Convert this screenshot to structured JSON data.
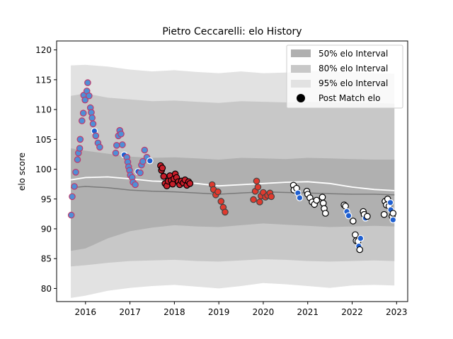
{
  "chart_data": {
    "type": "scatter",
    "title": "Pietro Ceccarelli: elo History",
    "xlabel": "",
    "ylabel": "elo score",
    "xlim": [
      2015.35,
      2023.25
    ],
    "ylim": [
      77.8,
      121.5
    ],
    "x_ticks": [
      2016,
      2017,
      2018,
      2019,
      2020,
      2021,
      2022,
      2023
    ],
    "y_ticks": [
      80,
      85,
      90,
      95,
      100,
      105,
      110,
      115,
      120
    ],
    "grid": false,
    "legend": {
      "placement": "top-right",
      "entries": [
        {
          "label": "50% elo Interval",
          "color": "#b0b0b0"
        },
        {
          "label": "80% elo Interval",
          "color": "#c8c8c8"
        },
        {
          "label": "95% elo Interval",
          "color": "#e2e2e2"
        },
        {
          "label": "Post Match elo",
          "color": "#000000"
        }
      ]
    },
    "bands": {
      "x": [
        2015.67,
        2016.0,
        2016.5,
        2017.0,
        2017.5,
        2018.0,
        2018.5,
        2019.0,
        2019.5,
        2020.0,
        2020.5,
        2021.0,
        2021.5,
        2022.0,
        2022.5,
        2022.95
      ],
      "i95_lo": [
        78.4,
        78.8,
        79.6,
        80.1,
        80.4,
        80.6,
        80.3,
        80.0,
        80.4,
        80.9,
        80.7,
        80.4,
        80.1,
        80.5,
        80.6,
        80.5
      ],
      "i95_hi": [
        117.4,
        117.5,
        117.2,
        116.7,
        116.4,
        116.6,
        116.3,
        116.1,
        116.4,
        116.1,
        116.2,
        116.5,
        116.4,
        116.3,
        116.1,
        116.0
      ],
      "i80_lo": [
        83.7,
        83.9,
        84.3,
        84.6,
        84.7,
        84.8,
        84.6,
        84.5,
        84.7,
        84.9,
        84.8,
        84.6,
        84.5,
        84.6,
        84.7,
        84.6
      ],
      "i80_hi": [
        112.3,
        112.7,
        112.0,
        111.7,
        111.4,
        111.5,
        111.3,
        111.1,
        111.4,
        111.3,
        111.2,
        111.3,
        111.2,
        111.1,
        111.1,
        111.0
      ],
      "i50_lo": [
        86.3,
        86.7,
        88.4,
        89.6,
        90.2,
        90.6,
        90.4,
        90.3,
        90.6,
        90.9,
        90.7,
        90.5,
        90.3,
        90.4,
        90.5,
        90.4
      ],
      "i50_hi": [
        103.5,
        103.1,
        102.6,
        102.1,
        101.9,
        102.0,
        101.8,
        101.6,
        101.9,
        101.8,
        101.7,
        101.9,
        101.8,
        101.7,
        101.6,
        101.6
      ],
      "median": [
        96.9,
        97.1,
        96.9,
        96.5,
        96.3,
        96.2,
        96.0,
        95.8,
        96.0,
        96.2,
        96.1,
        96.0,
        95.9,
        95.8,
        95.8,
        95.7
      ],
      "mean": [
        98.2,
        98.6,
        98.7,
        98.4,
        98.0,
        97.9,
        97.6,
        97.2,
        97.4,
        97.6,
        97.8,
        97.9,
        97.6,
        97.0,
        96.6,
        96.4
      ]
    },
    "points": [
      {
        "x": 2015.68,
        "y": 92.3,
        "fill": "#4f8fd6",
        "edge": "#c0396b"
      },
      {
        "x": 2015.7,
        "y": 95.4,
        "fill": "#4f8fd6",
        "edge": "#c0396b"
      },
      {
        "x": 2015.75,
        "y": 97.1,
        "fill": "#4f8fd6",
        "edge": "#c0396b"
      },
      {
        "x": 2015.78,
        "y": 99.5,
        "fill": "#4f8fd6",
        "edge": "#c0396b"
      },
      {
        "x": 2015.82,
        "y": 101.6,
        "fill": "#4f8fd6",
        "edge": "#c0396b"
      },
      {
        "x": 2015.84,
        "y": 102.7,
        "fill": "#4f8fd6",
        "edge": "#c0396b"
      },
      {
        "x": 2015.87,
        "y": 103.5,
        "fill": "#4f8fd6",
        "edge": "#c0396b"
      },
      {
        "x": 2015.88,
        "y": 105.0,
        "fill": "#4f8fd6",
        "edge": "#c0396b"
      },
      {
        "x": 2015.92,
        "y": 108.1,
        "fill": "#4f8fd6",
        "edge": "#c0396b"
      },
      {
        "x": 2015.95,
        "y": 109.4,
        "fill": "#4f8fd6",
        "edge": "#c0396b"
      },
      {
        "x": 2015.96,
        "y": 112.4,
        "fill": "#4f8fd6",
        "edge": "#c0396b"
      },
      {
        "x": 2015.99,
        "y": 111.6,
        "fill": "#4f8fd6",
        "edge": "#c0396b"
      },
      {
        "x": 2016.03,
        "y": 113.1,
        "fill": "#4f8fd6",
        "edge": "#c0396b"
      },
      {
        "x": 2016.05,
        "y": 114.5,
        "fill": "#4f8fd6",
        "edge": "#c0396b"
      },
      {
        "x": 2016.08,
        "y": 112.3,
        "fill": "#4f8fd6",
        "edge": "#c0396b"
      },
      {
        "x": 2016.11,
        "y": 110.3,
        "fill": "#4f8fd6",
        "edge": "#c0396b"
      },
      {
        "x": 2016.13,
        "y": 109.5,
        "fill": "#4f8fd6",
        "edge": "#c0396b"
      },
      {
        "x": 2016.15,
        "y": 108.6,
        "fill": "#4f8fd6",
        "edge": "#c0396b"
      },
      {
        "x": 2016.17,
        "y": 107.6,
        "fill": "#4f8fd6",
        "edge": "#c0396b"
      },
      {
        "x": 2016.2,
        "y": 106.4,
        "fill": "#1f5fd0",
        "edge": "#ffffff"
      },
      {
        "x": 2016.23,
        "y": 105.6,
        "fill": "#4f8fd6",
        "edge": "#c0396b"
      },
      {
        "x": 2016.28,
        "y": 104.4,
        "fill": "#4f8fd6",
        "edge": "#c0396b"
      },
      {
        "x": 2016.32,
        "y": 103.7,
        "fill": "#4f8fd6",
        "edge": "#c0396b"
      },
      {
        "x": 2016.68,
        "y": 102.7,
        "fill": "#4f8fd6",
        "edge": "#c0396b"
      },
      {
        "x": 2016.7,
        "y": 104.0,
        "fill": "#4f8fd6",
        "edge": "#c0396b"
      },
      {
        "x": 2016.74,
        "y": 105.6,
        "fill": "#4f8fd6",
        "edge": "#c0396b"
      },
      {
        "x": 2016.77,
        "y": 106.5,
        "fill": "#4f8fd6",
        "edge": "#c0396b"
      },
      {
        "x": 2016.8,
        "y": 105.9,
        "fill": "#4f8fd6",
        "edge": "#c0396b"
      },
      {
        "x": 2016.83,
        "y": 104.1,
        "fill": "#4f8fd6",
        "edge": "#c0396b"
      },
      {
        "x": 2016.87,
        "y": 102.4,
        "fill": "#1f5fd0",
        "edge": "#ffffff"
      },
      {
        "x": 2016.93,
        "y": 102.0,
        "fill": "#4f8fd6",
        "edge": "#c0396b"
      },
      {
        "x": 2016.95,
        "y": 101.2,
        "fill": "#4f8fd6",
        "edge": "#c0396b"
      },
      {
        "x": 2016.97,
        "y": 100.4,
        "fill": "#4f8fd6",
        "edge": "#c0396b"
      },
      {
        "x": 2016.99,
        "y": 99.8,
        "fill": "#4f8fd6",
        "edge": "#c0396b"
      },
      {
        "x": 2017.01,
        "y": 99.0,
        "fill": "#4f8fd6",
        "edge": "#c0396b"
      },
      {
        "x": 2017.05,
        "y": 98.6,
        "fill": "#4f8fd6",
        "edge": "#c0396b"
      },
      {
        "x": 2017.07,
        "y": 97.8,
        "fill": "#4f8fd6",
        "edge": "#c0396b"
      },
      {
        "x": 2017.12,
        "y": 97.4,
        "fill": "#4f8fd6",
        "edge": "#c0396b"
      },
      {
        "x": 2017.18,
        "y": 99.6,
        "fill": "#1f5fd0",
        "edge": "#ffffff"
      },
      {
        "x": 2017.23,
        "y": 99.4,
        "fill": "#4f8fd6",
        "edge": "#c0396b"
      },
      {
        "x": 2017.26,
        "y": 100.7,
        "fill": "#4f8fd6",
        "edge": "#c0396b"
      },
      {
        "x": 2017.29,
        "y": 101.3,
        "fill": "#4f8fd6",
        "edge": "#c0396b"
      },
      {
        "x": 2017.33,
        "y": 103.2,
        "fill": "#4f8fd6",
        "edge": "#c0396b"
      },
      {
        "x": 2017.38,
        "y": 102.0,
        "fill": "#4f8fd6",
        "edge": "#c0396b"
      },
      {
        "x": 2017.45,
        "y": 101.4,
        "fill": "#1f5fd0",
        "edge": "#ffffff"
      },
      {
        "x": 2017.69,
        "y": 100.6,
        "fill": "#c81e2a",
        "edge": "#000000"
      },
      {
        "x": 2017.71,
        "y": 99.8,
        "fill": "#c81e2a",
        "edge": "#000000"
      },
      {
        "x": 2017.73,
        "y": 100.2,
        "fill": "#c81e2a",
        "edge": "#000000"
      },
      {
        "x": 2017.76,
        "y": 98.8,
        "fill": "#c81e2a",
        "edge": "#000000"
      },
      {
        "x": 2017.79,
        "y": 97.6,
        "fill": "#c81e2a",
        "edge": "#000000"
      },
      {
        "x": 2017.83,
        "y": 97.2,
        "fill": "#c81e2a",
        "edge": "#000000"
      },
      {
        "x": 2017.86,
        "y": 98.0,
        "fill": "#c81e2a",
        "edge": "#000000"
      },
      {
        "x": 2017.9,
        "y": 98.9,
        "fill": "#c81e2a",
        "edge": "#000000"
      },
      {
        "x": 2017.93,
        "y": 98.1,
        "fill": "#c81e2a",
        "edge": "#000000"
      },
      {
        "x": 2017.96,
        "y": 97.5,
        "fill": "#c81e2a",
        "edge": "#000000"
      },
      {
        "x": 2017.99,
        "y": 98.4,
        "fill": "#c81e2a",
        "edge": "#000000"
      },
      {
        "x": 2018.02,
        "y": 99.2,
        "fill": "#c81e2a",
        "edge": "#000000"
      },
      {
        "x": 2018.05,
        "y": 98.6,
        "fill": "#c81e2a",
        "edge": "#000000"
      },
      {
        "x": 2018.09,
        "y": 97.9,
        "fill": "#c81e2a",
        "edge": "#000000"
      },
      {
        "x": 2018.12,
        "y": 97.4,
        "fill": "#c81e2a",
        "edge": "#000000"
      },
      {
        "x": 2018.16,
        "y": 98.0,
        "fill": "#c81e2a",
        "edge": "#000000"
      },
      {
        "x": 2018.2,
        "y": 97.7,
        "fill": "#c81e2a",
        "edge": "#000000"
      },
      {
        "x": 2018.24,
        "y": 98.2,
        "fill": "#c81e2a",
        "edge": "#000000"
      },
      {
        "x": 2018.28,
        "y": 97.3,
        "fill": "#c81e2a",
        "edge": "#000000"
      },
      {
        "x": 2018.32,
        "y": 97.9,
        "fill": "#c81e2a",
        "edge": "#000000"
      },
      {
        "x": 2018.35,
        "y": 97.6,
        "fill": "#c81e2a",
        "edge": "#000000"
      },
      {
        "x": 2018.85,
        "y": 97.4,
        "fill": "#e03a2e",
        "edge": "#444444"
      },
      {
        "x": 2018.88,
        "y": 96.6,
        "fill": "#e03a2e",
        "edge": "#444444"
      },
      {
        "x": 2018.93,
        "y": 95.7,
        "fill": "#e03a2e",
        "edge": "#444444"
      },
      {
        "x": 2018.98,
        "y": 96.2,
        "fill": "#e03a2e",
        "edge": "#444444"
      },
      {
        "x": 2019.05,
        "y": 94.6,
        "fill": "#e03a2e",
        "edge": "#444444"
      },
      {
        "x": 2019.1,
        "y": 93.6,
        "fill": "#e03a2e",
        "edge": "#444444"
      },
      {
        "x": 2019.14,
        "y": 92.8,
        "fill": "#e03a2e",
        "edge": "#444444"
      },
      {
        "x": 2019.78,
        "y": 94.9,
        "fill": "#e03a2e",
        "edge": "#444444"
      },
      {
        "x": 2019.82,
        "y": 96.3,
        "fill": "#e03a2e",
        "edge": "#444444"
      },
      {
        "x": 2019.85,
        "y": 98.0,
        "fill": "#e03a2e",
        "edge": "#444444"
      },
      {
        "x": 2019.88,
        "y": 97.0,
        "fill": "#e03a2e",
        "edge": "#444444"
      },
      {
        "x": 2019.92,
        "y": 94.5,
        "fill": "#e03a2e",
        "edge": "#444444"
      },
      {
        "x": 2019.95,
        "y": 95.5,
        "fill": "#e03a2e",
        "edge": "#444444"
      },
      {
        "x": 2020.0,
        "y": 96.1,
        "fill": "#e03a2e",
        "edge": "#444444"
      },
      {
        "x": 2020.05,
        "y": 95.3,
        "fill": "#e03a2e",
        "edge": "#444444"
      },
      {
        "x": 2020.1,
        "y": 95.6,
        "fill": "#e03a2e",
        "edge": "#444444"
      },
      {
        "x": 2020.15,
        "y": 96.0,
        "fill": "#e03a2e",
        "edge": "#444444"
      },
      {
        "x": 2020.18,
        "y": 95.4,
        "fill": "#e03a2e",
        "edge": "#444444"
      },
      {
        "x": 2020.68,
        "y": 97.3,
        "fill": "#ffffff",
        "edge": "#000000"
      },
      {
        "x": 2020.69,
        "y": 96.5,
        "fill": "#ffffff",
        "edge": "#000000"
      },
      {
        "x": 2020.75,
        "y": 96.8,
        "fill": "#ffffff",
        "edge": "#000000"
      },
      {
        "x": 2020.78,
        "y": 96.0,
        "fill": "#1f5fd0",
        "edge": "#ffffff"
      },
      {
        "x": 2020.82,
        "y": 95.2,
        "fill": "#1f5fd0",
        "edge": "#ffffff"
      },
      {
        "x": 2020.98,
        "y": 96.3,
        "fill": "#ffffff",
        "edge": "#000000"
      },
      {
        "x": 2021.0,
        "y": 95.8,
        "fill": "#ffffff",
        "edge": "#000000"
      },
      {
        "x": 2021.05,
        "y": 95.2,
        "fill": "#ffffff",
        "edge": "#000000"
      },
      {
        "x": 2021.1,
        "y": 94.5,
        "fill": "#ffffff",
        "edge": "#000000"
      },
      {
        "x": 2021.15,
        "y": 94.1,
        "fill": "#ffffff",
        "edge": "#000000"
      },
      {
        "x": 2021.2,
        "y": 94.8,
        "fill": "#ffffff",
        "edge": "#000000"
      },
      {
        "x": 2021.33,
        "y": 95.3,
        "fill": "#ffffff",
        "edge": "#000000"
      },
      {
        "x": 2021.35,
        "y": 94.3,
        "fill": "#ffffff",
        "edge": "#000000"
      },
      {
        "x": 2021.37,
        "y": 93.4,
        "fill": "#ffffff",
        "edge": "#000000"
      },
      {
        "x": 2021.4,
        "y": 92.6,
        "fill": "#ffffff",
        "edge": "#000000"
      },
      {
        "x": 2021.82,
        "y": 94.0,
        "fill": "#ffffff",
        "edge": "#000000"
      },
      {
        "x": 2021.85,
        "y": 93.8,
        "fill": "#ffffff",
        "edge": "#000000"
      },
      {
        "x": 2021.88,
        "y": 92.9,
        "fill": "#1f5fd0",
        "edge": "#ffffff"
      },
      {
        "x": 2021.92,
        "y": 92.2,
        "fill": "#1f5fd0",
        "edge": "#ffffff"
      },
      {
        "x": 2022.02,
        "y": 91.3,
        "fill": "#ffffff",
        "edge": "#000000"
      },
      {
        "x": 2022.07,
        "y": 89.0,
        "fill": "#ffffff",
        "edge": "#000000"
      },
      {
        "x": 2022.09,
        "y": 88.0,
        "fill": "#ffffff",
        "edge": "#000000"
      },
      {
        "x": 2022.13,
        "y": 87.9,
        "fill": "#ffffff",
        "edge": "#000000"
      },
      {
        "x": 2022.15,
        "y": 87.1,
        "fill": "#1f5fd0",
        "edge": "#ffffff"
      },
      {
        "x": 2022.17,
        "y": 86.5,
        "fill": "#ffffff",
        "edge": "#000000"
      },
      {
        "x": 2022.19,
        "y": 88.4,
        "fill": "#1f5fd0",
        "edge": "#ffffff"
      },
      {
        "x": 2022.25,
        "y": 92.9,
        "fill": "#ffffff",
        "edge": "#000000"
      },
      {
        "x": 2022.27,
        "y": 92.4,
        "fill": "#ffffff",
        "edge": "#000000"
      },
      {
        "x": 2022.3,
        "y": 91.8,
        "fill": "#1f5fd0",
        "edge": "#ffffff"
      },
      {
        "x": 2022.34,
        "y": 92.1,
        "fill": "#ffffff",
        "edge": "#000000"
      },
      {
        "x": 2022.72,
        "y": 92.4,
        "fill": "#ffffff",
        "edge": "#000000"
      },
      {
        "x": 2022.74,
        "y": 94.6,
        "fill": "#ffffff",
        "edge": "#000000"
      },
      {
        "x": 2022.77,
        "y": 94.0,
        "fill": "#ffffff",
        "edge": "#000000"
      },
      {
        "x": 2022.8,
        "y": 95.0,
        "fill": "#ffffff",
        "edge": "#000000"
      },
      {
        "x": 2022.83,
        "y": 93.8,
        "fill": "#ffffff",
        "edge": "#000000"
      },
      {
        "x": 2022.86,
        "y": 94.4,
        "fill": "#1f5fd0",
        "edge": "#ffffff"
      },
      {
        "x": 2022.87,
        "y": 93.2,
        "fill": "#1f5fd0",
        "edge": "#ffffff"
      },
      {
        "x": 2022.9,
        "y": 92.1,
        "fill": "#ffffff",
        "edge": "#000000"
      },
      {
        "x": 2022.92,
        "y": 92.6,
        "fill": "#ffffff",
        "edge": "#000000"
      },
      {
        "x": 2022.92,
        "y": 91.5,
        "fill": "#1f5fd0",
        "edge": "#ffffff"
      }
    ]
  }
}
